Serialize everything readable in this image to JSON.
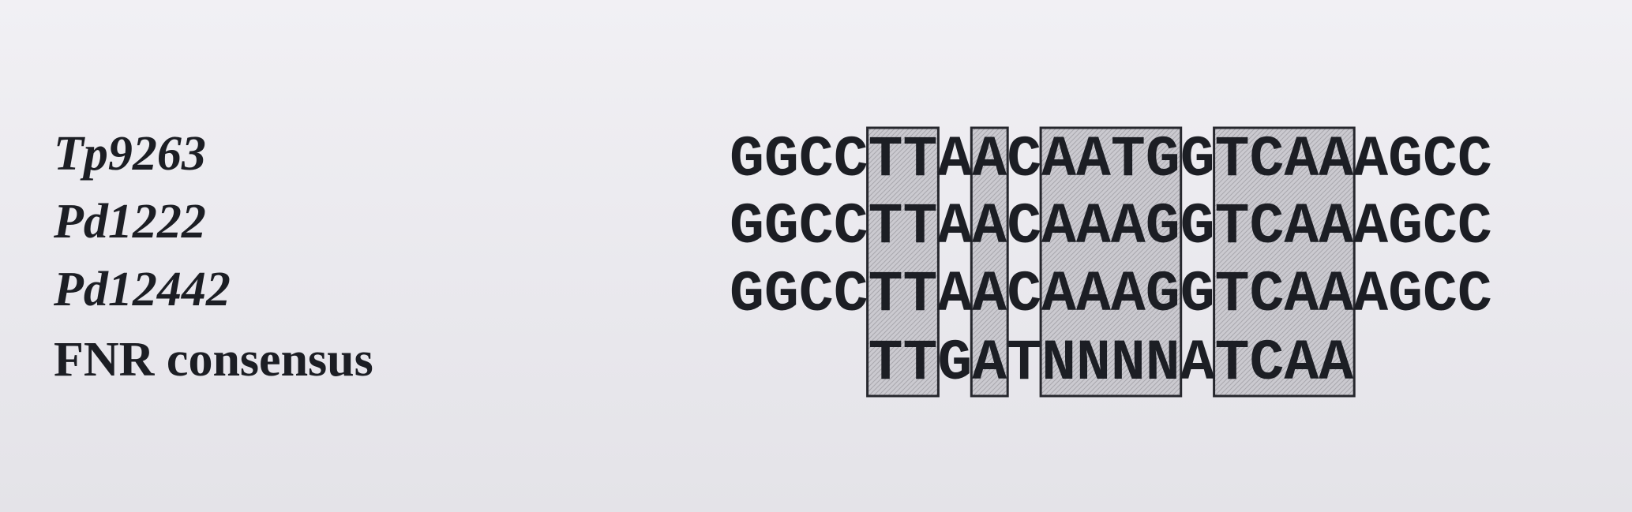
{
  "rows": [
    {
      "name": "Tp9263",
      "sequence": "GGCCTTAACAATGGTCAAAGCC",
      "offset": 0
    },
    {
      "name": "Pd1222",
      "sequence": "GGCCTTAACAAAGGTCAAAGCC",
      "offset": 0
    },
    {
      "name": "Pd12442",
      "sequence": "GGCCTTAACAAAGGTCAAAGCC",
      "offset": 0
    },
    {
      "name": "FNR consensus",
      "sequence": "TTGATNNNNATCAA",
      "offset": 4
    }
  ],
  "boxes": [
    {
      "start": 4,
      "end": 5
    },
    {
      "start": 7,
      "end": 7
    },
    {
      "start": 9,
      "end": 12
    },
    {
      "start": 14,
      "end": 17
    }
  ],
  "colors": {
    "text": "#1c1e24",
    "box_fill": "#c9c8ce",
    "box_stroke": "#26272d"
  }
}
